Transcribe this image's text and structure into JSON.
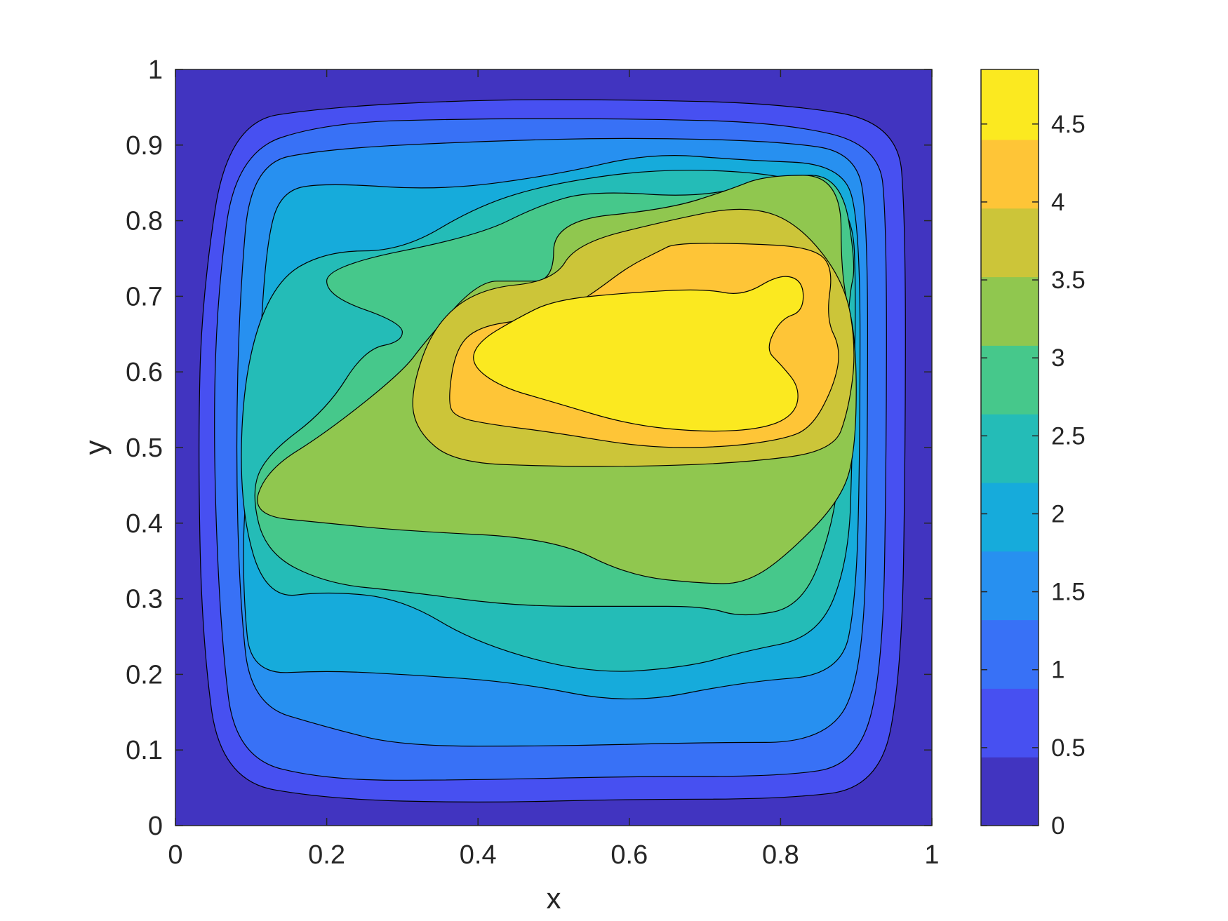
{
  "chart_data": {
    "type": "contourf",
    "xlabel": "x",
    "ylabel": "y",
    "xlim": [
      0,
      1
    ],
    "ylim": [
      0,
      1
    ],
    "x_ticks": [
      "0",
      "0.2",
      "0.4",
      "0.6",
      "0.8",
      "1"
    ],
    "y_ticks": [
      "0",
      "0.1",
      "0.2",
      "0.3",
      "0.4",
      "0.5",
      "0.6",
      "0.7",
      "0.8",
      "0.9",
      "1"
    ],
    "colorbar": {
      "range": [
        0,
        4.85
      ],
      "ticks": [
        "0",
        "0.5",
        "1",
        "1.5",
        "2",
        "2.5",
        "3",
        "3.5",
        "4",
        "4.5"
      ],
      "colormap": "parula",
      "location": "right"
    },
    "levels": [
      0,
      0.44,
      0.88,
      1.32,
      1.76,
      2.2,
      2.64,
      3.08,
      3.52,
      3.96,
      4.4,
      4.85
    ],
    "field_peak": {
      "x": 0.66,
      "y": 0.62,
      "value": 4.85
    },
    "grid": false,
    "regions": [
      {
        "level": 0.44,
        "points": [
          [
            0.06,
            0.06
          ],
          [
            0.2,
            0.035
          ],
          [
            0.4,
            0.03
          ],
          [
            0.6,
            0.035
          ],
          [
            0.8,
            0.035
          ],
          [
            0.93,
            0.05
          ],
          [
            0.96,
            0.2
          ],
          [
            0.965,
            0.5
          ],
          [
            0.965,
            0.8
          ],
          [
            0.955,
            0.93
          ],
          [
            0.8,
            0.955
          ],
          [
            0.6,
            0.96
          ],
          [
            0.4,
            0.96
          ],
          [
            0.2,
            0.95
          ],
          [
            0.07,
            0.93
          ],
          [
            0.035,
            0.7
          ],
          [
            0.03,
            0.5
          ],
          [
            0.035,
            0.25
          ]
        ]
      },
      {
        "level": 0.88,
        "points": [
          [
            0.08,
            0.09
          ],
          [
            0.2,
            0.06
          ],
          [
            0.38,
            0.06
          ],
          [
            0.6,
            0.065
          ],
          [
            0.8,
            0.065
          ],
          [
            0.9,
            0.08
          ],
          [
            0.935,
            0.2
          ],
          [
            0.94,
            0.5
          ],
          [
            0.94,
            0.8
          ],
          [
            0.93,
            0.9
          ],
          [
            0.8,
            0.93
          ],
          [
            0.6,
            0.935
          ],
          [
            0.4,
            0.935
          ],
          [
            0.2,
            0.93
          ],
          [
            0.08,
            0.89
          ],
          [
            0.055,
            0.7
          ],
          [
            0.05,
            0.5
          ],
          [
            0.06,
            0.25
          ]
        ]
      },
      {
        "level": 1.32,
        "points": [
          [
            0.1,
            0.16
          ],
          [
            0.2,
            0.13
          ],
          [
            0.3,
            0.105
          ],
          [
            0.5,
            0.105
          ],
          [
            0.7,
            0.11
          ],
          [
            0.86,
            0.11
          ],
          [
            0.91,
            0.2
          ],
          [
            0.915,
            0.5
          ],
          [
            0.915,
            0.8
          ],
          [
            0.9,
            0.89
          ],
          [
            0.8,
            0.905
          ],
          [
            0.6,
            0.91
          ],
          [
            0.4,
            0.905
          ],
          [
            0.2,
            0.895
          ],
          [
            0.1,
            0.875
          ],
          [
            0.085,
            0.7
          ],
          [
            0.08,
            0.5
          ],
          [
            0.085,
            0.3
          ]
        ]
      },
      {
        "level": 1.76,
        "points": [
          [
            0.1,
            0.2
          ],
          [
            0.2,
            0.205
          ],
          [
            0.3,
            0.2
          ],
          [
            0.45,
            0.19
          ],
          [
            0.6,
            0.16
          ],
          [
            0.75,
            0.19
          ],
          [
            0.88,
            0.2
          ],
          [
            0.9,
            0.3
          ],
          [
            0.905,
            0.5
          ],
          [
            0.905,
            0.8
          ],
          [
            0.88,
            0.875
          ],
          [
            0.75,
            0.88
          ],
          [
            0.63,
            0.89
          ],
          [
            0.5,
            0.86
          ],
          [
            0.35,
            0.84
          ],
          [
            0.2,
            0.85
          ],
          [
            0.14,
            0.84
          ],
          [
            0.12,
            0.77
          ],
          [
            0.11,
            0.6
          ],
          [
            0.09,
            0.42
          ],
          [
            0.09,
            0.3
          ]
        ]
      },
      {
        "level": 2.2,
        "points": [
          [
            0.12,
            0.3
          ],
          [
            0.2,
            0.31
          ],
          [
            0.3,
            0.3
          ],
          [
            0.4,
            0.24
          ],
          [
            0.55,
            0.2
          ],
          [
            0.68,
            0.21
          ],
          [
            0.75,
            0.23
          ],
          [
            0.85,
            0.25
          ],
          [
            0.89,
            0.35
          ],
          [
            0.895,
            0.5
          ],
          [
            0.9,
            0.7
          ],
          [
            0.895,
            0.82
          ],
          [
            0.82,
            0.86
          ],
          [
            0.65,
            0.87
          ],
          [
            0.5,
            0.85
          ],
          [
            0.4,
            0.82
          ],
          [
            0.3,
            0.76
          ],
          [
            0.2,
            0.76
          ],
          [
            0.13,
            0.72
          ],
          [
            0.09,
            0.6
          ],
          [
            0.085,
            0.42
          ]
        ]
      },
      {
        "level": 2.64,
        "points": [
          [
            0.12,
            0.36
          ],
          [
            0.2,
            0.32
          ],
          [
            0.3,
            0.31
          ],
          [
            0.45,
            0.29
          ],
          [
            0.6,
            0.29
          ],
          [
            0.7,
            0.29
          ],
          [
            0.75,
            0.275
          ],
          [
            0.83,
            0.29
          ],
          [
            0.87,
            0.4
          ],
          [
            0.88,
            0.5
          ],
          [
            0.89,
            0.7
          ],
          [
            0.9,
            0.74
          ],
          [
            0.88,
            0.86
          ],
          [
            0.8,
            0.86
          ],
          [
            0.7,
            0.83
          ],
          [
            0.55,
            0.84
          ],
          [
            0.48,
            0.82
          ],
          [
            0.4,
            0.78
          ],
          [
            0.2,
            0.74
          ],
          [
            0.2,
            0.7
          ],
          [
            0.3,
            0.665
          ],
          [
            0.3,
            0.64
          ],
          [
            0.25,
            0.63
          ],
          [
            0.2,
            0.55
          ],
          [
            0.12,
            0.49
          ],
          [
            0.1,
            0.44
          ]
        ]
      },
      {
        "level": 3.08,
        "points": [
          [
            0.1,
            0.41
          ],
          [
            0.2,
            0.4
          ],
          [
            0.3,
            0.39
          ],
          [
            0.5,
            0.38
          ],
          [
            0.6,
            0.33
          ],
          [
            0.7,
            0.32
          ],
          [
            0.75,
            0.32
          ],
          [
            0.8,
            0.35
          ],
          [
            0.88,
            0.43
          ],
          [
            0.9,
            0.5
          ],
          [
            0.9,
            0.65
          ],
          [
            0.88,
            0.72
          ],
          [
            0.88,
            0.86
          ],
          [
            0.78,
            0.86
          ],
          [
            0.73,
            0.84
          ],
          [
            0.65,
            0.815
          ],
          [
            0.5,
            0.8
          ],
          [
            0.5,
            0.72
          ],
          [
            0.45,
            0.72
          ],
          [
            0.4,
            0.72
          ],
          [
            0.33,
            0.64
          ],
          [
            0.3,
            0.6
          ],
          [
            0.2,
            0.52
          ],
          [
            0.12,
            0.47
          ]
        ]
      },
      {
        "level": 3.52,
        "points": [
          [
            0.32,
            0.52
          ],
          [
            0.37,
            0.48
          ],
          [
            0.5,
            0.475
          ],
          [
            0.62,
            0.475
          ],
          [
            0.75,
            0.48
          ],
          [
            0.87,
            0.495
          ],
          [
            0.89,
            0.55
          ],
          [
            0.9,
            0.63
          ],
          [
            0.885,
            0.72
          ],
          [
            0.82,
            0.8
          ],
          [
            0.75,
            0.82
          ],
          [
            0.65,
            0.8
          ],
          [
            0.53,
            0.77
          ],
          [
            0.5,
            0.72
          ],
          [
            0.4,
            0.71
          ],
          [
            0.34,
            0.66
          ],
          [
            0.31,
            0.57
          ]
        ]
      },
      {
        "level": 3.96,
        "points": [
          [
            0.37,
            0.54
          ],
          [
            0.42,
            0.53
          ],
          [
            0.5,
            0.52
          ],
          [
            0.62,
            0.5
          ],
          [
            0.72,
            0.5
          ],
          [
            0.8,
            0.51
          ],
          [
            0.84,
            0.525
          ],
          [
            0.87,
            0.58
          ],
          [
            0.88,
            0.63
          ],
          [
            0.86,
            0.67
          ],
          [
            0.87,
            0.74
          ],
          [
            0.84,
            0.765
          ],
          [
            0.75,
            0.77
          ],
          [
            0.66,
            0.77
          ],
          [
            0.64,
            0.76
          ],
          [
            0.6,
            0.74
          ],
          [
            0.56,
            0.71
          ],
          [
            0.53,
            0.69
          ],
          [
            0.47,
            0.67
          ],
          [
            0.4,
            0.66
          ],
          [
            0.37,
            0.63
          ],
          [
            0.36,
            0.56
          ]
        ]
      },
      {
        "level": 4.4,
        "points": [
          [
            0.43,
            0.58
          ],
          [
            0.5,
            0.56
          ],
          [
            0.6,
            0.53
          ],
          [
            0.7,
            0.52
          ],
          [
            0.78,
            0.525
          ],
          [
            0.82,
            0.545
          ],
          [
            0.825,
            0.58
          ],
          [
            0.8,
            0.61
          ],
          [
            0.78,
            0.63
          ],
          [
            0.8,
            0.67
          ],
          [
            0.83,
            0.68
          ],
          [
            0.83,
            0.72
          ],
          [
            0.8,
            0.73
          ],
          [
            0.75,
            0.7
          ],
          [
            0.7,
            0.71
          ],
          [
            0.6,
            0.705
          ],
          [
            0.5,
            0.695
          ],
          [
            0.45,
            0.67
          ],
          [
            0.4,
            0.64
          ],
          [
            0.39,
            0.61
          ]
        ]
      }
    ]
  }
}
